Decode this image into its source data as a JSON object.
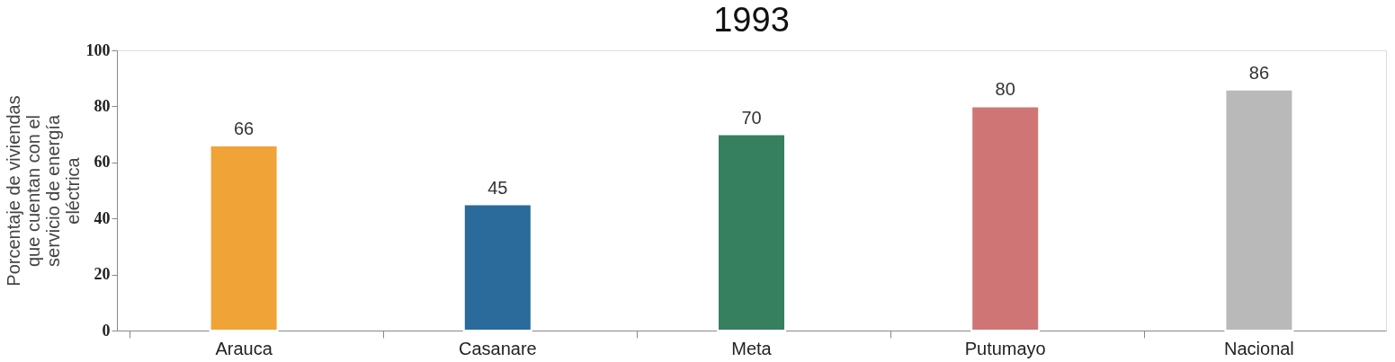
{
  "chart_data": {
    "type": "bar",
    "title": "1993",
    "ylabel": "Porcentaje de viviendas\nque cuentan con el\nservicio de energía\neléctrica",
    "categories": [
      "Arauca",
      "Casanare",
      "Meta",
      "Putumayo",
      "Nacional"
    ],
    "values": [
      66,
      45,
      70,
      80,
      86
    ],
    "colors": [
      "#f0a336",
      "#2a6b9b",
      "#367f5f",
      "#d07575",
      "#b9b9b9"
    ],
    "ylim": [
      0,
      100
    ],
    "yticks": [
      0,
      20,
      40,
      60,
      80,
      100
    ],
    "grid": false,
    "data_labels": true
  }
}
